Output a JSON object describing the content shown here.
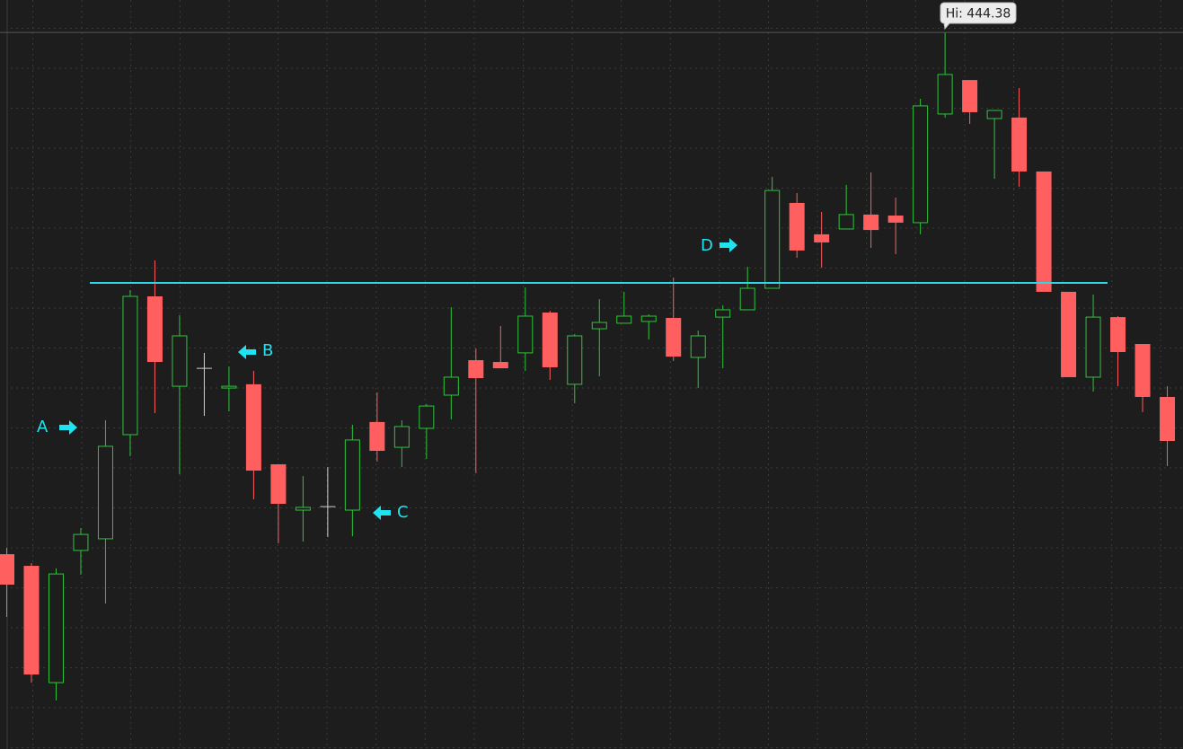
{
  "chart_data": {
    "type": "candlestick",
    "high_label": "Hi: 444.38",
    "annotations": [
      "A",
      "B",
      "C",
      "D"
    ],
    "level": 431.7,
    "ylim": [
      408.11,
      446.02
    ],
    "up_color": "#2ec43c",
    "down_color": "#ff5f5f",
    "doji_color": "#d0d0d0",
    "level_color": "#2fd6e6",
    "grid": true,
    "open": [
      417.97,
      417.38,
      411.47,
      418.16,
      418.75,
      424.02,
      431.02,
      426.47,
      427.38,
      426.38,
      426.57,
      422.52,
      420.2,
      420.38,
      420.2,
      424.66,
      423.38,
      424.34,
      426.02,
      427.79,
      427.7,
      428.16,
      430.2,
      426.57,
      429.38,
      429.66,
      429.75,
      429.93,
      427.93,
      429.97,
      430.34,
      431.43,
      435.75,
      434.16,
      434.43,
      435.16,
      435.11,
      434.75,
      440.25,
      441.97,
      440.02,
      440.07,
      437.34,
      431.25,
      426.93,
      429.97,
      428.61,
      425.93
    ],
    "high": [
      418.29,
      417.52,
      417.25,
      419.29,
      424.75,
      431.34,
      432.84,
      430.07,
      428.16,
      427.47,
      427.25,
      422.52,
      421.93,
      422.38,
      424.52,
      426.16,
      424.75,
      425.57,
      430.47,
      428.38,
      429.52,
      431.47,
      430.29,
      429.11,
      430.88,
      431.25,
      430.11,
      431.97,
      429.29,
      430.57,
      432.52,
      437.07,
      436.25,
      435.29,
      436.66,
      437.29,
      436.02,
      441.02,
      444.38,
      441.97,
      440.43,
      441.57,
      437.34,
      431.25,
      431.11,
      430.02,
      428.61,
      426.47
    ],
    "low": [
      414.79,
      411.47,
      410.57,
      416.93,
      415.47,
      422.93,
      425.11,
      422.02,
      424.97,
      425.2,
      420.75,
      418.52,
      418.61,
      418.84,
      418.88,
      422.66,
      422.38,
      422.79,
      424.79,
      422.07,
      427.38,
      427.25,
      426.79,
      425.61,
      426.97,
      429.66,
      428.84,
      427.75,
      426.38,
      427.38,
      430.34,
      431.43,
      432.97,
      432.47,
      434.43,
      433.47,
      433.16,
      434.16,
      440.07,
      439.75,
      436.97,
      436.57,
      431.25,
      426.93,
      426.2,
      426.47,
      425.16,
      422.43
    ],
    "close": [
      416.43,
      411.88,
      416.97,
      418.97,
      423.43,
      431.02,
      427.7,
      429.02,
      427.38,
      426.47,
      422.2,
      420.52,
      420.34,
      420.38,
      423.75,
      423.2,
      424.43,
      425.47,
      426.93,
      426.88,
      427.38,
      430.02,
      427.43,
      429.02,
      429.7,
      430.02,
      430.02,
      427.97,
      429.02,
      430.34,
      431.43,
      436.38,
      433.34,
      433.75,
      435.16,
      434.38,
      434.75,
      440.66,
      442.25,
      440.34,
      440.43,
      437.34,
      431.25,
      426.93,
      429.97,
      428.2,
      425.93,
      423.7
    ]
  }
}
